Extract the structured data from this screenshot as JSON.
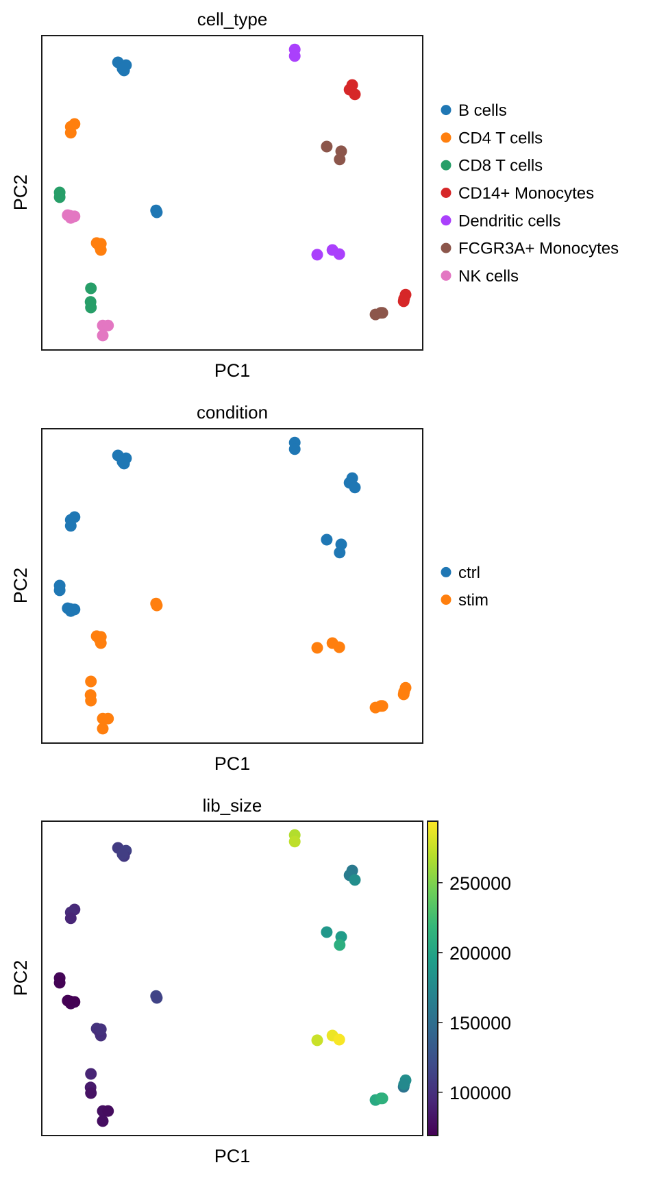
{
  "figure": {
    "xlabel": "PC1",
    "ylabel": "PC2",
    "panel_titles": [
      "cell_type",
      "condition",
      "lib_size"
    ]
  },
  "chart_data": [
    {
      "type": "scatter",
      "title": "cell_type",
      "xlabel": "PC1",
      "ylabel": "PC2",
      "xlim": [
        0,
        100
      ],
      "ylim": [
        0,
        100
      ],
      "grid": false,
      "ticks": false,
      "color_by": "cell_type",
      "legend_position": "right",
      "legend": [
        {
          "label": "B cells",
          "color": "#1f77b4"
        },
        {
          "label": "CD4 T cells",
          "color": "#ff7f0e"
        },
        {
          "label": "CD8 T cells",
          "color": "#279e68"
        },
        {
          "label": "CD14+ Monocytes",
          "color": "#d62728"
        },
        {
          "label": "Dendritic cells",
          "color": "#aa40fc"
        },
        {
          "label": "FCGR3A+ Monocytes",
          "color": "#8c564b"
        },
        {
          "label": "NK cells",
          "color": "#e377c2"
        }
      ]
    },
    {
      "type": "scatter",
      "title": "condition",
      "xlabel": "PC1",
      "ylabel": "PC2",
      "xlim": [
        0,
        100
      ],
      "ylim": [
        0,
        100
      ],
      "grid": false,
      "ticks": false,
      "color_by": "condition",
      "legend_position": "right",
      "legend": [
        {
          "label": "ctrl",
          "color": "#1f77b4"
        },
        {
          "label": "stim",
          "color": "#ff7f0e"
        }
      ]
    },
    {
      "type": "scatter",
      "title": "lib_size",
      "xlabel": "PC1",
      "ylabel": "PC2",
      "xlim": [
        0,
        100
      ],
      "ylim": [
        0,
        100
      ],
      "grid": false,
      "ticks": false,
      "color_by": "lib_size",
      "colormap": "viridis",
      "colorbar": {
        "range": [
          69000,
          294000
        ],
        "ticks": [
          100000,
          150000,
          200000,
          250000
        ],
        "tick_labels": [
          "100000",
          "150000",
          "200000",
          "250000"
        ],
        "position": "right"
      }
    }
  ],
  "points": [
    {
      "cell_type": "B cells",
      "condition": "ctrl",
      "pc1": 20.0,
      "pc2": 91.5,
      "lib_size": 108000
    },
    {
      "cell_type": "B cells",
      "condition": "ctrl",
      "pc1": 22.1,
      "pc2": 90.6,
      "lib_size": 112000
    },
    {
      "cell_type": "B cells",
      "condition": "ctrl",
      "pc1": 21.6,
      "pc2": 88.9,
      "lib_size": 106000
    },
    {
      "cell_type": "B cells",
      "condition": "ctrl",
      "pc1": 21.2,
      "pc2": 89.5,
      "lib_size": 110000
    },
    {
      "cell_type": "CD4 T cells",
      "condition": "ctrl",
      "pc1": 8.6,
      "pc2": 71.9,
      "lib_size": 95000
    },
    {
      "cell_type": "CD4 T cells",
      "condition": "ctrl",
      "pc1": 7.6,
      "pc2": 71.0,
      "lib_size": 97000
    },
    {
      "cell_type": "CD4 T cells",
      "condition": "ctrl",
      "pc1": 7.6,
      "pc2": 69.1,
      "lib_size": 93000
    },
    {
      "cell_type": "CD8 T cells",
      "condition": "ctrl",
      "pc1": 4.7,
      "pc2": 50.1,
      "lib_size": 72000
    },
    {
      "cell_type": "CD8 T cells",
      "condition": "ctrl",
      "pc1": 4.7,
      "pc2": 48.6,
      "lib_size": 70000
    },
    {
      "cell_type": "NK cells",
      "condition": "ctrl",
      "pc1": 6.8,
      "pc2": 42.9,
      "lib_size": 70000
    },
    {
      "cell_type": "NK cells",
      "condition": "ctrl",
      "pc1": 8.6,
      "pc2": 42.5,
      "lib_size": 68000
    },
    {
      "cell_type": "NK cells",
      "condition": "ctrl",
      "pc1": 7.6,
      "pc2": 42.0,
      "lib_size": 71000
    },
    {
      "cell_type": "NK cells",
      "condition": "ctrl",
      "pc1": 7.4,
      "pc2": 42.7,
      "lib_size": 69000
    },
    {
      "cell_type": "B cells",
      "condition": "stim",
      "pc1": 30.0,
      "pc2": 44.4,
      "lib_size": 116000
    },
    {
      "cell_type": "B cells",
      "condition": "stim",
      "pc1": 30.2,
      "pc2": 43.8,
      "lib_size": 114000
    },
    {
      "cell_type": "CD4 T cells",
      "condition": "stim",
      "pc1": 14.4,
      "pc2": 34.0,
      "lib_size": 102000
    },
    {
      "cell_type": "CD4 T cells",
      "condition": "stim",
      "pc1": 15.5,
      "pc2": 31.8,
      "lib_size": 100000
    },
    {
      "cell_type": "CD4 T cells",
      "condition": "stim",
      "pc1": 15.1,
      "pc2": 33.1,
      "lib_size": 98000
    },
    {
      "cell_type": "CD4 T cells",
      "condition": "stim",
      "pc1": 15.5,
      "pc2": 33.8,
      "lib_size": 101000
    },
    {
      "cell_type": "CD8 T cells",
      "condition": "stim",
      "pc1": 12.9,
      "pc2": 19.6,
      "lib_size": 92000
    },
    {
      "cell_type": "CD8 T cells",
      "condition": "stim",
      "pc1": 12.8,
      "pc2": 15.3,
      "lib_size": 85000
    },
    {
      "cell_type": "CD8 T cells",
      "condition": "stim",
      "pc1": 12.9,
      "pc2": 13.5,
      "lib_size": 80000
    },
    {
      "cell_type": "NK cells",
      "condition": "stim",
      "pc1": 16.0,
      "pc2": 7.8,
      "lib_size": 78000
    },
    {
      "cell_type": "NK cells",
      "condition": "stim",
      "pc1": 17.4,
      "pc2": 7.8,
      "lib_size": 76000
    },
    {
      "cell_type": "NK cells",
      "condition": "stim",
      "pc1": 16.0,
      "pc2": 4.6,
      "lib_size": 77000
    },
    {
      "cell_type": "Dendritic cells",
      "condition": "ctrl",
      "pc1": 66.4,
      "pc2": 95.6,
      "lib_size": 268000
    },
    {
      "cell_type": "Dendritic cells",
      "condition": "ctrl",
      "pc1": 66.4,
      "pc2": 93.5,
      "lib_size": 272000
    },
    {
      "cell_type": "CD14+ Monocytes",
      "condition": "ctrl",
      "pc1": 81.5,
      "pc2": 84.3,
      "lib_size": 160000
    },
    {
      "cell_type": "CD14+ Monocytes",
      "condition": "ctrl",
      "pc1": 80.8,
      "pc2": 82.8,
      "lib_size": 163000
    },
    {
      "cell_type": "CD14+ Monocytes",
      "condition": "ctrl",
      "pc1": 82.2,
      "pc2": 81.3,
      "lib_size": 180000
    },
    {
      "cell_type": "FCGR3A+ Monocytes",
      "condition": "ctrl",
      "pc1": 74.8,
      "pc2": 64.7,
      "lib_size": 188000
    },
    {
      "cell_type": "FCGR3A+ Monocytes",
      "condition": "ctrl",
      "pc1": 78.6,
      "pc2": 63.2,
      "lib_size": 192000
    },
    {
      "cell_type": "FCGR3A+ Monocytes",
      "condition": "ctrl",
      "pc1": 78.2,
      "pc2": 60.6,
      "lib_size": 210000
    },
    {
      "cell_type": "Dendritic cells",
      "condition": "stim",
      "pc1": 72.3,
      "pc2": 30.3,
      "lib_size": 276000
    },
    {
      "cell_type": "Dendritic cells",
      "condition": "stim",
      "pc1": 76.3,
      "pc2": 31.8,
      "lib_size": 288000
    },
    {
      "cell_type": "Dendritic cells",
      "condition": "stim",
      "pc1": 78.1,
      "pc2": 30.5,
      "lib_size": 292000
    },
    {
      "cell_type": "CD14+ Monocytes",
      "condition": "stim",
      "pc1": 95.5,
      "pc2": 17.6,
      "lib_size": 180000
    },
    {
      "cell_type": "CD14+ Monocytes",
      "condition": "stim",
      "pc1": 95.0,
      "pc2": 15.5,
      "lib_size": 155000
    },
    {
      "cell_type": "CD14+ Monocytes",
      "condition": "stim",
      "pc1": 95.1,
      "pc2": 16.3,
      "lib_size": 175000
    },
    {
      "cell_type": "FCGR3A+ Monocytes",
      "condition": "stim",
      "pc1": 87.6,
      "pc2": 11.3,
      "lib_size": 205000
    },
    {
      "cell_type": "FCGR3A+ Monocytes",
      "condition": "stim",
      "pc1": 89.0,
      "pc2": 11.8,
      "lib_size": 210000
    },
    {
      "cell_type": "FCGR3A+ Monocytes",
      "condition": "stim",
      "pc1": 89.4,
      "pc2": 11.8,
      "lib_size": 212000
    }
  ]
}
